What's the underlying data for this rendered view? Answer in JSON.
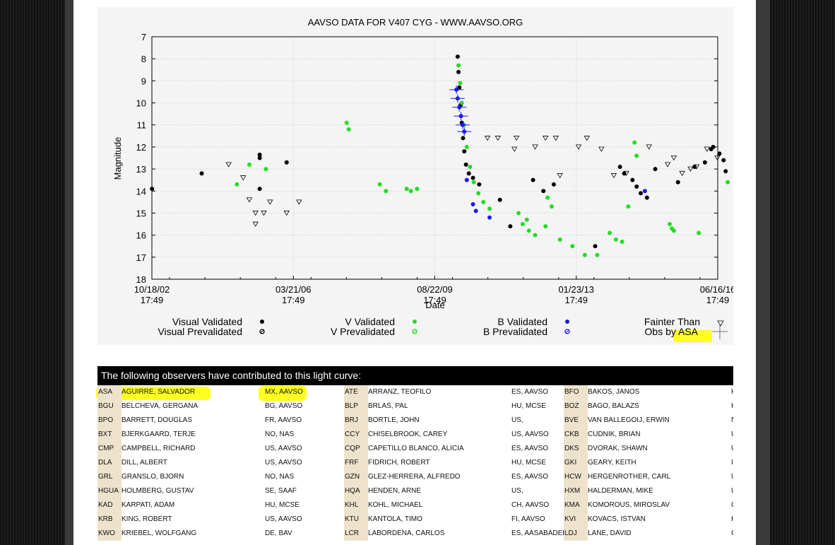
{
  "chart_data": {
    "type": "scatter",
    "title": "AAVSO DATA FOR V407 CYG - WWW.AAVSO.ORG",
    "xlabel": "Date",
    "ylabel": "Magnitude",
    "x_ticks": [
      {
        "line1": "10/18/02",
        "line2": "17:49"
      },
      {
        "line1": "03/21/06",
        "line2": "17:49"
      },
      {
        "line1": "08/22/09",
        "line2": "17:49"
      },
      {
        "line1": "01/23/13",
        "line2": "17:49"
      },
      {
        "line1": "06/16/16",
        "line2": "17:49"
      }
    ],
    "y_ticks": [
      "7",
      "8",
      "9",
      "10",
      "11",
      "12",
      "13",
      "14",
      "15",
      "16",
      "17",
      "18"
    ],
    "ylim": [
      18,
      7
    ],
    "y_inverted": true,
    "grid": true,
    "legend": {
      "visual_validated": "Visual Validated",
      "visual_prevalidated": "Visual Prevalidated",
      "v_validated": "V Validated",
      "v_prevalidated": "V Prevalidated",
      "b_validated": "B Validated",
      "b_prevalidated": "B Prevalidated",
      "fainter_than": "Fainter Than",
      "obs_by": "Obs by ASA"
    },
    "colors": {
      "visual": "#000000",
      "v": "#22dd22",
      "b": "#1a1aee",
      "fainter": "#000000"
    },
    "series": [
      {
        "name": "Visual Validated",
        "points": [
          [
            2002.8,
            13.9
          ],
          [
            2004.0,
            13.2
          ],
          [
            2005.4,
            12.5
          ],
          [
            2005.4,
            12.35
          ],
          [
            2005.4,
            13.9
          ],
          [
            2006.05,
            12.7
          ],
          [
            2010.18,
            7.9
          ],
          [
            2010.2,
            8.6
          ],
          [
            2010.22,
            9.3
          ],
          [
            2010.25,
            10.1
          ],
          [
            2010.28,
            10.9
          ],
          [
            2010.31,
            11.6
          ],
          [
            2010.34,
            12.2
          ],
          [
            2010.38,
            12.8
          ],
          [
            2010.45,
            13.2
          ],
          [
            2010.55,
            13.4
          ],
          [
            2010.7,
            13.7
          ],
          [
            2011.2,
            14.4
          ],
          [
            2011.45,
            15.6
          ],
          [
            2012.0,
            13.5
          ],
          [
            2012.25,
            14.0
          ],
          [
            2012.5,
            13.7
          ],
          [
            2013.5,
            16.5
          ],
          [
            2014.1,
            12.9
          ],
          [
            2014.2,
            13.2
          ],
          [
            2014.4,
            13.5
          ],
          [
            2014.5,
            13.8
          ],
          [
            2014.6,
            14.1
          ],
          [
            2014.75,
            14.3
          ],
          [
            2014.95,
            13.0
          ],
          [
            2015.5,
            13.6
          ],
          [
            2015.9,
            12.9
          ],
          [
            2016.15,
            12.7
          ],
          [
            2016.3,
            12.1
          ],
          [
            2016.35,
            12.0
          ],
          [
            2016.5,
            12.3
          ],
          [
            2016.6,
            12.6
          ],
          [
            2016.65,
            13.1
          ]
        ]
      },
      {
        "name": "V Validated",
        "points": [
          [
            2004.85,
            13.7
          ],
          [
            2005.15,
            12.8
          ],
          [
            2005.55,
            13.0
          ],
          [
            2007.5,
            10.9
          ],
          [
            2007.55,
            11.2
          ],
          [
            2008.3,
            13.7
          ],
          [
            2008.45,
            14.0
          ],
          [
            2008.95,
            13.9
          ],
          [
            2009.05,
            14.0
          ],
          [
            2009.2,
            13.9
          ],
          [
            2010.2,
            8.3
          ],
          [
            2010.24,
            9.1
          ],
          [
            2010.28,
            10.0
          ],
          [
            2010.33,
            11.0
          ],
          [
            2010.4,
            12.0
          ],
          [
            2010.48,
            12.9
          ],
          [
            2010.57,
            13.6
          ],
          [
            2010.68,
            14.1
          ],
          [
            2010.8,
            14.5
          ],
          [
            2010.95,
            14.8
          ],
          [
            2011.65,
            15.0
          ],
          [
            2011.75,
            15.5
          ],
          [
            2011.85,
            15.3
          ],
          [
            2011.9,
            15.8
          ],
          [
            2012.05,
            16.0
          ],
          [
            2012.3,
            15.6
          ],
          [
            2012.35,
            14.3
          ],
          [
            2012.45,
            14.7
          ],
          [
            2012.65,
            16.2
          ],
          [
            2012.95,
            16.5
          ],
          [
            2013.25,
            16.9
          ],
          [
            2013.55,
            16.9
          ],
          [
            2013.85,
            15.9
          ],
          [
            2014.0,
            16.2
          ],
          [
            2014.15,
            16.3
          ],
          [
            2014.3,
            14.7
          ],
          [
            2014.45,
            11.8
          ],
          [
            2014.5,
            12.4
          ],
          [
            2015.3,
            15.5
          ],
          [
            2015.35,
            15.7
          ],
          [
            2015.4,
            15.8
          ],
          [
            2016.0,
            15.9
          ],
          [
            2016.7,
            13.6
          ]
        ]
      },
      {
        "name": "B Validated",
        "points": [
          [
            2010.15,
            9.4
          ],
          [
            2010.18,
            9.8
          ],
          [
            2010.22,
            10.2
          ],
          [
            2010.26,
            10.6
          ],
          [
            2010.3,
            11.0
          ],
          [
            2010.34,
            11.3
          ],
          [
            2010.4,
            13.5
          ],
          [
            2010.55,
            14.6
          ],
          [
            2010.62,
            14.9
          ],
          [
            2010.95,
            15.2
          ],
          [
            2014.7,
            14.0
          ]
        ]
      },
      {
        "name": "Fainter Than",
        "points": [
          [
            2004.65,
            12.8
          ],
          [
            2005.0,
            13.4
          ],
          [
            2005.15,
            14.4
          ],
          [
            2005.3,
            15.5
          ],
          [
            2005.3,
            15.0
          ],
          [
            2005.5,
            15.0
          ],
          [
            2005.65,
            14.5
          ],
          [
            2006.05,
            15.0
          ],
          [
            2006.35,
            14.5
          ],
          [
            2010.9,
            11.6
          ],
          [
            2011.15,
            11.6
          ],
          [
            2011.55,
            12.1
          ],
          [
            2011.6,
            11.6
          ],
          [
            2012.05,
            12.0
          ],
          [
            2012.3,
            11.6
          ],
          [
            2012.55,
            11.6
          ],
          [
            2012.65,
            13.3
          ],
          [
            2013.1,
            12.0
          ],
          [
            2013.3,
            11.6
          ],
          [
            2013.65,
            12.1
          ],
          [
            2013.95,
            13.3
          ],
          [
            2014.25,
            13.2
          ],
          [
            2014.8,
            12.0
          ],
          [
            2015.25,
            12.8
          ],
          [
            2015.4,
            12.5
          ],
          [
            2015.6,
            13.2
          ],
          [
            2015.8,
            13.0
          ],
          [
            2015.95,
            12.9
          ],
          [
            2016.2,
            12.1
          ],
          [
            2016.45,
            12.5
          ]
        ]
      }
    ]
  },
  "observers": {
    "heading": "The following observers have contributed to this light curve:",
    "rows": [
      [
        {
          "code": "ASA",
          "name": "AGUIRRE, SALVADOR",
          "loc": "MX, AAVSO"
        },
        {
          "code": "ATE",
          "name": "ARRANZ, TEOFILO",
          "loc": "ES, AAVSO"
        },
        {
          "code": "BFO",
          "name": "BAKOS, JANOS",
          "loc": "HU, MCSE"
        }
      ],
      [
        {
          "code": "BGU",
          "name": "BELCHEVA, GERGANA",
          "loc": "BG, AAVSO"
        },
        {
          "code": "BLP",
          "name": "BRLAS, PAL",
          "loc": "HU, MCSE"
        },
        {
          "code": "BOZ",
          "name": "BAGO, BALAZS",
          "loc": "HU, MCSE"
        }
      ],
      [
        {
          "code": "BPO",
          "name": "BARRETT, DOUGLAS",
          "loc": "FR, AAVSO"
        },
        {
          "code": "BRJ",
          "name": "BORTLE, JOHN",
          "loc": "US,"
        },
        {
          "code": "BVE",
          "name": "VAN BALLEGOIJ, ERWIN",
          "loc": "NL, KNVWS"
        }
      ],
      [
        {
          "code": "BXT",
          "name": "BJERKGAARD, TERJE",
          "loc": "NO, NAS"
        },
        {
          "code": "CCY",
          "name": "CHISELBROOK, CAREY",
          "loc": "US, AAVSO"
        },
        {
          "code": "CKB",
          "name": "CUDNIK, BRIAN",
          "loc": "US, AAVSO"
        }
      ],
      [
        {
          "code": "CMP",
          "name": "CAMPBELL, RICHARD",
          "loc": "US, AAVSO"
        },
        {
          "code": "CQP",
          "name": "CAPETILLO BLANCO, ALICIA",
          "loc": "ES, AAVSO"
        },
        {
          "code": "DKS",
          "name": "DVORAK, SHAWN",
          "loc": "US, AAVSO"
        }
      ],
      [
        {
          "code": "DLA",
          "name": "DILL, ALBERT",
          "loc": "US, AAVSO"
        },
        {
          "code": "FRF",
          "name": "FIDRICH, ROBERT",
          "loc": "HU, MCSE"
        },
        {
          "code": "GKI",
          "name": "GEARY, KEITH",
          "loc": "IE,"
        }
      ],
      [
        {
          "code": "GRL",
          "name": "GRANSLO, BJORN",
          "loc": "NO, NAS"
        },
        {
          "code": "GZN",
          "name": "GLEZ-HERRERA, ALFREDO",
          "loc": "ES, AAVSO"
        },
        {
          "code": "HCW",
          "name": "HERGENROTHER, CARL",
          "loc": "US,"
        }
      ],
      [
        {
          "code": "HGUA",
          "name": "HOLMBERG, GUSTAV",
          "loc": "SE, SAAF"
        },
        {
          "code": "HQA",
          "name": "HENDEN, ARNE",
          "loc": "US,"
        },
        {
          "code": "HXM",
          "name": "HALDERMAN, MIKE",
          "loc": "US, AAVSO"
        }
      ],
      [
        {
          "code": "KAD",
          "name": "KARPATI, ADAM",
          "loc": "HU, MCSE"
        },
        {
          "code": "KHL",
          "name": "KOHL, MICHAEL",
          "loc": "CH, AAVSO"
        },
        {
          "code": "KMA",
          "name": "KOMOROUS, MIROSLAV",
          "loc": "CA, AAVSO"
        }
      ],
      [
        {
          "code": "KRB",
          "name": "KING, ROBERT",
          "loc": "US, AAVSO"
        },
        {
          "code": "KTU",
          "name": "KANTOLA, TIMO",
          "loc": "FI, AAVSO"
        },
        {
          "code": "KVI",
          "name": "KOVACS, ISTVAN",
          "loc": "HU, MCSE"
        }
      ],
      [
        {
          "code": "KWO",
          "name": "KRIEBEL, WOLFGANG",
          "loc": "DE, BAV"
        },
        {
          "code": "LCR",
          "name": "LABORDENA, CARLOS",
          "loc": "ES, AASABADELL"
        },
        {
          "code": "LDJ",
          "name": "LANE, DAVID",
          "loc": "CA, RASC"
        }
      ]
    ]
  }
}
